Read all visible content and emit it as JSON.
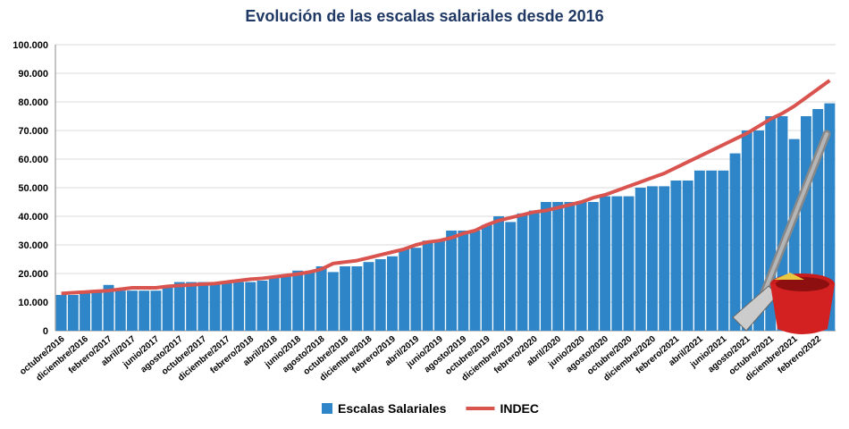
{
  "chart_data": {
    "type": "bar-line",
    "title": "Evolución de las escalas salariales desde 2016",
    "categories": [
      "octubre/2016",
      null,
      "diciembre/2016",
      null,
      "febrero/2017",
      null,
      "abril/2017",
      null,
      "junio/2017",
      null,
      "agosto/2017",
      null,
      "octubre/2017",
      null,
      "diciembre/2017",
      null,
      "febrero/2018",
      null,
      "abril/2018",
      null,
      "junio/2018",
      null,
      "agosto/2018",
      null,
      "octubre/2018",
      null,
      "diciembre/2018",
      null,
      "febrero/2019",
      null,
      "abril/2019",
      null,
      "junio/2019",
      null,
      "agosto/2019",
      null,
      "octubre/2019",
      null,
      "diciembre/2019",
      null,
      "febrero/2020",
      null,
      "abril/2020",
      null,
      "junio/2020",
      null,
      "agosto/2020",
      null,
      "octubre/2020",
      null,
      "diciembre/2020",
      null,
      "febrero/2021",
      null,
      "abril/2021",
      null,
      "junio/2021",
      null,
      "agosto/2021",
      null,
      "octubre/2021",
      null,
      "diciembre/2021",
      null,
      "febrero/2022",
      null
    ],
    "series": [
      {
        "name": "Escalas Salariales",
        "type": "bar",
        "color": "#2e86c8",
        "values": [
          12500,
          12500,
          13000,
          13500,
          16000,
          14000,
          14000,
          14000,
          14000,
          15000,
          17000,
          17000,
          17000,
          17000,
          17000,
          17000,
          17000,
          17500,
          18500,
          19000,
          21000,
          20500,
          22500,
          20500,
          22500,
          22500,
          24000,
          25000,
          26000,
          28500,
          29000,
          31500,
          31500,
          35000,
          35000,
          35000,
          37000,
          40000,
          38000,
          41000,
          42000,
          45000,
          45000,
          45000,
          45000,
          45000,
          47000,
          47000,
          47000,
          50000,
          50500,
          50500,
          52500,
          52500,
          56000,
          56000,
          56000,
          62000,
          70000,
          70000,
          75000,
          75000,
          67000,
          75000,
          77500,
          79500
        ]
      },
      {
        "name": "INDEC",
        "type": "line",
        "color": "#d9534f",
        "values": [
          13000,
          13300,
          13500,
          13800,
          14000,
          14500,
          15000,
          15000,
          15000,
          15500,
          15800,
          16000,
          16300,
          16500,
          17000,
          17500,
          18000,
          18300,
          18800,
          19300,
          19800,
          20500,
          21500,
          23500,
          24000,
          24500,
          25500,
          26500,
          27500,
          28500,
          30000,
          31000,
          31500,
          32500,
          34000,
          35000,
          37000,
          38500,
          39500,
          40500,
          41500,
          42000,
          43000,
          44000,
          45000,
          46500,
          47500,
          49000,
          50500,
          52000,
          53500,
          55000,
          57000,
          59000,
          61000,
          63000,
          65000,
          67000,
          69000,
          71500,
          74000,
          76000,
          78500,
          81500,
          84500,
          87500
        ]
      }
    ],
    "ylim": [
      0,
      100000
    ],
    "yticks": [
      0,
      {
        "value": 10000,
        "label": "10.000"
      },
      {
        "value": 20000,
        "label": "20.000"
      },
      {
        "value": 30000,
        "label": "30.000"
      },
      {
        "value": 40000,
        "label": "40.000"
      },
      {
        "value": 50000,
        "label": "50.000"
      },
      {
        "value": 60000,
        "label": "60.000"
      },
      {
        "value": 70000,
        "label": "70.000"
      },
      {
        "value": 80000,
        "label": "80.000"
      },
      {
        "value": 90000,
        "label": "90.000"
      },
      {
        "value": 100000,
        "label": "100.000"
      }
    ],
    "grid": true,
    "legend": "bottom"
  }
}
